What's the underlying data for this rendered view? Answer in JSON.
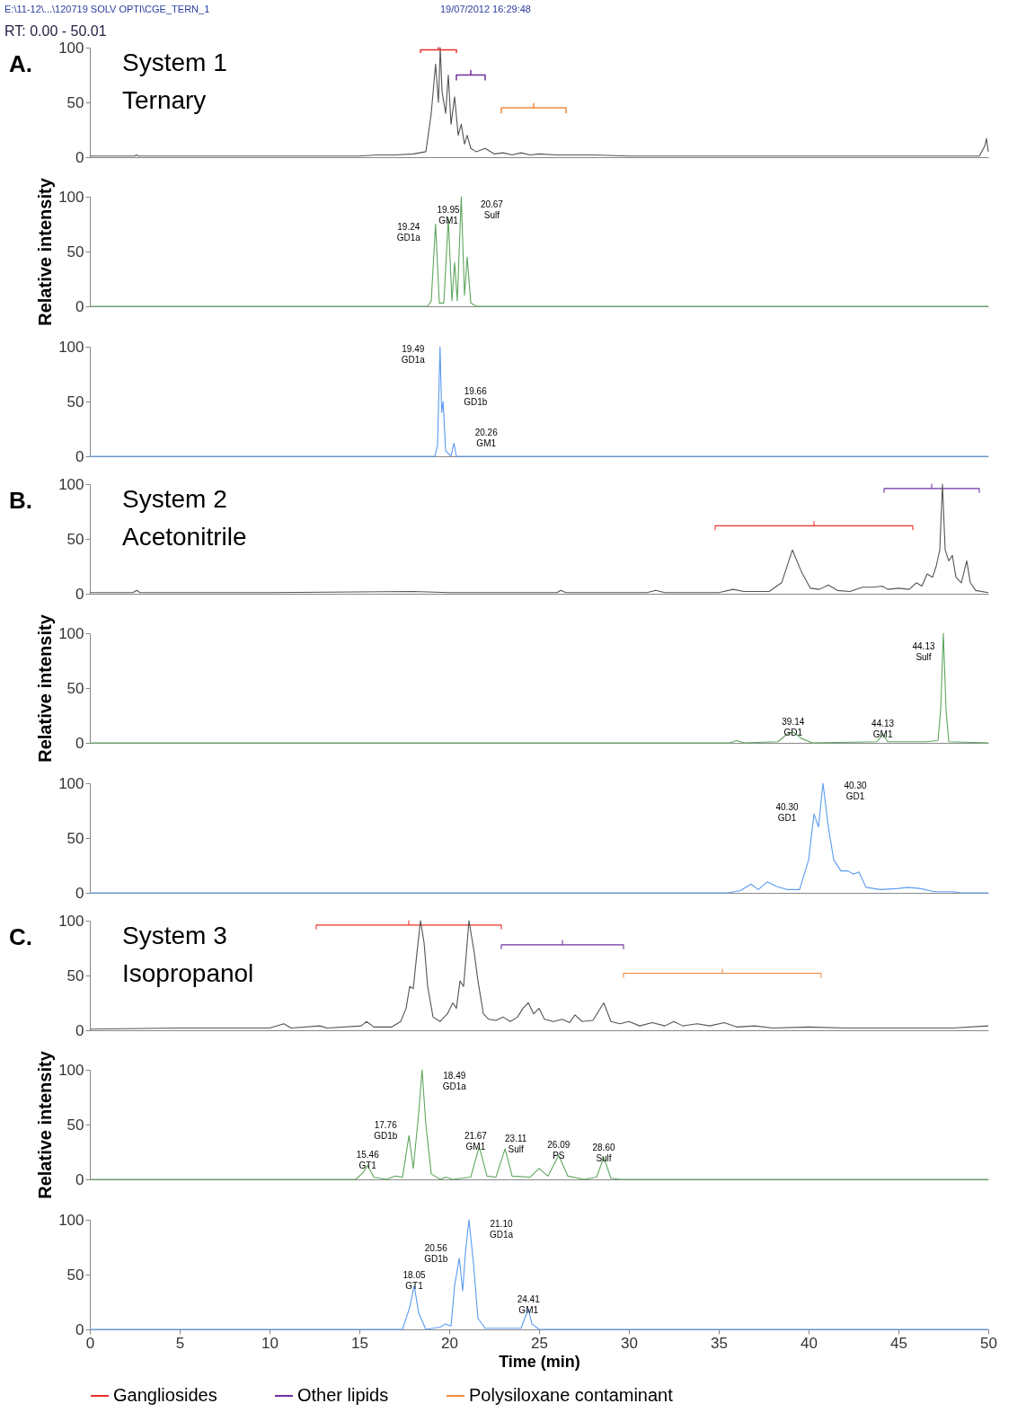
{
  "chart_data": [
    {
      "type": "line",
      "xlim": [
        0,
        50
      ],
      "ylim": [
        0,
        100
      ],
      "yticks": [
        0,
        50,
        100
      ],
      "tick_labels": "y",
      "legend": "bottom",
      "annotations": [
        "E:\\11-12\\...\\120719 SOLV OPTI\\CGE_TERN_1",
        "19/07/2012 16:29:48",
        "RT: 0.00 - 50.01",
        "A.",
        "System 1",
        "Ternary"
      ],
      "series": [
        {
          "color": "#555555",
          "x": [
            0,
            2.5,
            2.6,
            2.7,
            15,
            16,
            17,
            18,
            18.7,
            19.0,
            19.24,
            19.4,
            19.5,
            19.6,
            19.8,
            19.95,
            20.1,
            20.3,
            20.5,
            20.67,
            20.85,
            21,
            21.2,
            21.5,
            22,
            22.5,
            23,
            23.5,
            24,
            24.5,
            25,
            26,
            28,
            30,
            40,
            48,
            49.5,
            49.8,
            49.9,
            50
          ],
          "values": [
            1,
            1,
            2,
            1,
            1,
            2,
            2,
            3,
            5,
            40,
            85,
            50,
            100,
            60,
            40,
            75,
            30,
            55,
            20,
            30,
            12,
            20,
            8,
            5,
            8,
            3,
            4,
            2,
            4,
            2,
            3,
            2,
            2,
            1,
            1,
            1,
            1,
            10,
            17,
            5
          ]
        },
        {
          "type": "line",
          "name": "Gangliosides",
          "color": "#e8302a",
          "x": [
            18.4,
            18.4,
            19.4,
            19.4,
            19.4,
            20.4,
            20.4
          ],
          "values": [
            95,
            98,
            98,
            100,
            98,
            98,
            95
          ]
        },
        {
          "type": "line",
          "name": "Other lipids",
          "color": "#7030a0",
          "x": [
            20.4,
            20.4,
            21.2,
            21.2,
            21.2,
            22,
            22
          ],
          "values": [
            70,
            75,
            75,
            79,
            75,
            75,
            70
          ]
        },
        {
          "type": "line",
          "name": "Polysiloxane contaminant",
          "color": "#f08a3c",
          "x": [
            22.9,
            22.9,
            24.7,
            24.7,
            24.7,
            26.5,
            26.5
          ],
          "values": [
            40,
            45,
            45,
            49,
            45,
            45,
            40
          ]
        }
      ]
    },
    {
      "type": "line",
      "xlim": [
        0,
        50
      ],
      "ylim": [
        0,
        100
      ],
      "yticks": [
        0,
        50,
        100
      ],
      "tick_labels": "y",
      "ylabel": "Relative intensity",
      "annotations": [
        {
          "text": "19.24\nGD1a",
          "x": 19.24,
          "y": 75
        },
        {
          "text": "19.95\nGM1",
          "x": 19.95,
          "y": 80
        },
        {
          "text": "20.67\nSulf",
          "x": 20.67,
          "y": 100
        }
      ],
      "series": [
        {
          "color": "#5ea65e",
          "x": [
            0,
            18.8,
            19.0,
            19.24,
            19.45,
            19.7,
            19.95,
            20.15,
            20.3,
            20.45,
            20.67,
            20.85,
            21.0,
            21.2,
            21.5,
            50
          ],
          "values": [
            0,
            0,
            5,
            75,
            3,
            3,
            80,
            5,
            40,
            5,
            100,
            10,
            45,
            3,
            0,
            0
          ]
        }
      ]
    },
    {
      "type": "line",
      "xlim": [
        0,
        50
      ],
      "ylim": [
        0,
        100
      ],
      "yticks": [
        0,
        50,
        100
      ],
      "tick_labels": "y",
      "annotations": [
        {
          "text": "19.49\nGD1a",
          "x": 19.49,
          "y": 100
        },
        {
          "text": "19.66\nGD1b",
          "x": 19.66,
          "y": 50
        },
        {
          "text": "20.26\nGM1",
          "x": 20.26,
          "y": 12
        }
      ],
      "series": [
        {
          "color": "#5b9bf0",
          "x": [
            0,
            19.2,
            19.35,
            19.49,
            19.58,
            19.66,
            19.8,
            20.1,
            20.26,
            20.4,
            50
          ],
          "values": [
            0,
            0,
            10,
            100,
            40,
            50,
            5,
            0,
            12,
            0,
            0
          ]
        }
      ]
    },
    {
      "type": "line",
      "xlim": [
        0,
        50
      ],
      "ylim": [
        0,
        100
      ],
      "yticks": [
        0,
        50,
        100
      ],
      "tick_labels": "y",
      "annotations": [
        "B.",
        "System 2",
        "Acetonitrile"
      ],
      "series": [
        {
          "type": "line",
          "color": "#7030a0",
          "x": [
            44.2,
            44.2,
            46.85,
            46.85,
            46.85,
            49.5,
            49.5
          ],
          "values": [
            92,
            96,
            96,
            100,
            96,
            96,
            92
          ]
        },
        {
          "type": "line",
          "color": "#e8302a",
          "x": [
            34.8,
            34.8,
            40.3,
            40.3,
            40.3,
            45.8,
            45.8
          ],
          "values": [
            58,
            62,
            62,
            66,
            62,
            62,
            58
          ]
        },
        {
          "color": "#555555",
          "x": [
            0,
            2.4,
            2.6,
            2.8,
            10,
            18,
            20,
            26,
            26.2,
            26.5,
            31,
            31.5,
            32,
            35,
            35.8,
            36.4,
            37,
            37.8,
            38.5,
            39.1,
            39.6,
            40.1,
            40.6,
            41.1,
            41.6,
            42.3,
            43,
            43.6,
            44.1,
            44.4,
            45,
            45.6,
            46,
            46.3,
            46.6,
            46.9,
            47.1,
            47.3,
            47.45,
            47.6,
            47.8,
            48,
            48.2,
            48.5,
            48.8,
            49.0,
            49.3,
            50
          ],
          "values": [
            1,
            1,
            3,
            1,
            1,
            2,
            1,
            1,
            3,
            1,
            1,
            3,
            1,
            1,
            4,
            2,
            2,
            2,
            10,
            40,
            20,
            5,
            4,
            8,
            3,
            2,
            6,
            6,
            7,
            4,
            5,
            4,
            10,
            7,
            18,
            15,
            25,
            40,
            100,
            40,
            30,
            35,
            15,
            10,
            30,
            10,
            3,
            1
          ]
        }
      ]
    },
    {
      "type": "line",
      "xlim": [
        0,
        50
      ],
      "ylim": [
        0,
        100
      ],
      "yticks": [
        0,
        50,
        100
      ],
      "tick_labels": "y",
      "ylabel": "Relative intensity",
      "annotations": [
        {
          "text": "44.13\nSulf",
          "x": 47.5,
          "y": 100
        },
        {
          "text": "39.14\nGD1",
          "x": 39.14,
          "y": 10
        },
        {
          "text": "44.13\nGM1",
          "x": 44.13,
          "y": 8
        }
      ],
      "series": [
        {
          "color": "#5ea65e",
          "x": [
            0,
            35.6,
            36,
            36.4,
            38.3,
            38.8,
            39.14,
            39.6,
            40.2,
            43.8,
            44.13,
            44.4,
            46.5,
            47.2,
            47.35,
            47.5,
            47.65,
            47.8,
            50
          ],
          "values": [
            0,
            0,
            2,
            0,
            1,
            8,
            10,
            4,
            0,
            1,
            8,
            1,
            1,
            2,
            30,
            100,
            30,
            1,
            0
          ]
        }
      ]
    },
    {
      "type": "line",
      "xlim": [
        0,
        50
      ],
      "ylim": [
        0,
        100
      ],
      "yticks": [
        0,
        50,
        100
      ],
      "tick_labels": "y",
      "annotations": [
        {
          "text": "40.30\nGD1",
          "x": 40.3,
          "y": 72
        },
        {
          "text": "40.30\nGD1",
          "x": 40.8,
          "y": 100
        }
      ],
      "series": [
        {
          "color": "#5b9bf0",
          "x": [
            0,
            35.5,
            36.2,
            36.8,
            37.2,
            37.7,
            38.2,
            38.8,
            39.5,
            40.0,
            40.3,
            40.55,
            40.8,
            41.1,
            41.4,
            41.8,
            42.2,
            42.5,
            42.8,
            43.2,
            44,
            45,
            45.5,
            46.2,
            47,
            48,
            48.5,
            50
          ],
          "values": [
            0,
            0,
            2,
            8,
            3,
            10,
            6,
            3,
            3,
            30,
            72,
            60,
            100,
            60,
            30,
            20,
            20,
            17,
            19,
            5,
            3,
            4,
            5,
            4,
            1,
            1,
            0,
            0
          ]
        }
      ]
    },
    {
      "type": "line",
      "xlim": [
        0,
        50
      ],
      "ylim": [
        0,
        100
      ],
      "yticks": [
        0,
        50,
        100
      ],
      "tick_labels": "y",
      "annotations": [
        "C.",
        "System 3",
        "Isopropanol"
      ],
      "series": [
        {
          "type": "line",
          "color": "#e8302a",
          "x": [
            12.6,
            12.6,
            17.75,
            17.75,
            17.75,
            22.9,
            22.9
          ],
          "values": [
            92,
            96,
            96,
            100,
            96,
            96,
            92
          ]
        },
        {
          "type": "line",
          "color": "#7030a0",
          "x": [
            22.9,
            22.9,
            26.3,
            26.3,
            26.3,
            29.7,
            29.7
          ],
          "values": [
            74,
            78,
            78,
            82,
            78,
            78,
            74
          ]
        },
        {
          "type": "line",
          "color": "#f08a3c",
          "x": [
            29.7,
            29.7,
            35.2,
            35.2,
            35.2,
            40.7,
            40.7
          ],
          "values": [
            48,
            52,
            52,
            56,
            52,
            52,
            48
          ]
        },
        {
          "color": "#555555",
          "x": [
            0,
            5,
            10,
            10.8,
            11.2,
            12.8,
            13.2,
            15.1,
            15.4,
            15.8,
            16.8,
            17.3,
            17.6,
            17.8,
            18.0,
            18.2,
            18.4,
            18.6,
            18.8,
            19.1,
            19.5,
            19.9,
            20.2,
            20.4,
            20.6,
            20.8,
            21.1,
            21.4,
            21.6,
            21.9,
            22.2,
            22.6,
            23,
            23.4,
            23.8,
            24.1,
            24.4,
            24.7,
            25,
            25.3,
            25.8,
            26.3,
            26.7,
            27,
            27.4,
            28,
            28.6,
            29,
            29.5,
            30,
            30.6,
            31.3,
            32,
            32.5,
            33,
            33.8,
            34.5,
            35.3,
            36,
            37,
            38,
            40,
            42,
            45,
            48,
            50
          ],
          "values": [
            1,
            2,
            2,
            6,
            2,
            4,
            2,
            4,
            8,
            3,
            3,
            8,
            20,
            40,
            38,
            70,
            100,
            80,
            40,
            12,
            8,
            15,
            25,
            20,
            45,
            40,
            100,
            70,
            45,
            15,
            10,
            9,
            12,
            8,
            12,
            20,
            25,
            15,
            20,
            10,
            8,
            10,
            7,
            14,
            8,
            9,
            25,
            8,
            6,
            8,
            4,
            7,
            4,
            8,
            4,
            6,
            4,
            7,
            3,
            4,
            2,
            3,
            2,
            2,
            2,
            4
          ]
        }
      ]
    },
    {
      "type": "line",
      "xlim": [
        0,
        50
      ],
      "ylim": [
        0,
        100
      ],
      "yticks": [
        0,
        50,
        100
      ],
      "tick_labels": "y",
      "ylabel": "Relative intensity",
      "annotations": [
        {
          "text": "15.46\nGT1",
          "x": 15.46,
          "y": 13
        },
        {
          "text": "17.76\nGD1b",
          "x": 17.76,
          "y": 40
        },
        {
          "text": "18.49\nGD1a",
          "x": 18.49,
          "y": 100
        },
        {
          "text": "21.67\nGM1",
          "x": 21.67,
          "y": 30
        },
        {
          "text": "23.11\nSulf",
          "x": 23.11,
          "y": 28
        },
        {
          "text": "26.09\nPS",
          "x": 26.09,
          "y": 22
        },
        {
          "text": "28.60\nSulf",
          "x": 28.6,
          "y": 20
        }
      ],
      "series": [
        {
          "color": "#5ea65e",
          "x": [
            0,
            14.8,
            15.2,
            15.46,
            15.8,
            16.5,
            17,
            17.4,
            17.76,
            18.0,
            18.3,
            18.49,
            18.7,
            19,
            19.5,
            19.8,
            20.2,
            21.2,
            21.67,
            22.1,
            22.6,
            23.11,
            23.5,
            24.5,
            25,
            25.5,
            26.09,
            26.6,
            27.5,
            28.2,
            28.6,
            29,
            29.5,
            50
          ],
          "values": [
            0,
            0,
            6,
            13,
            2,
            0,
            3,
            2,
            40,
            10,
            60,
            100,
            50,
            5,
            0,
            2,
            0,
            2,
            30,
            3,
            2,
            28,
            3,
            2,
            10,
            3,
            22,
            3,
            0,
            2,
            20,
            1,
            0,
            0
          ]
        }
      ]
    },
    {
      "type": "line",
      "xlim": [
        0,
        50
      ],
      "ylim": [
        0,
        100
      ],
      "yticks": [
        0,
        50,
        100
      ],
      "xticks": [
        0,
        5,
        10,
        15,
        20,
        25,
        30,
        35,
        40,
        45,
        50
      ],
      "xlabel": "Time (min)",
      "annotations": [
        {
          "text": "18.05\nGT1",
          "x": 18.05,
          "y": 40
        },
        {
          "text": "20.56\nGD1b",
          "x": 20.56,
          "y": 65
        },
        {
          "text": "21.10\nGD1a",
          "x": 21.1,
          "y": 100
        },
        {
          "text": "24.41\nGM1",
          "x": 24.41,
          "y": 18
        }
      ],
      "series": [
        {
          "color": "#5b9bf0",
          "x": [
            0,
            17.4,
            17.8,
            18.05,
            18.3,
            18.7,
            19.5,
            19.8,
            20.1,
            20.3,
            20.56,
            20.75,
            20.9,
            21.1,
            21.35,
            21.6,
            22,
            24,
            24.2,
            24.41,
            24.6,
            25,
            50
          ],
          "values": [
            0,
            0,
            20,
            40,
            15,
            0,
            2,
            5,
            3,
            40,
            65,
            35,
            70,
            100,
            60,
            10,
            1,
            1,
            10,
            18,
            5,
            0,
            0
          ]
        }
      ]
    }
  ]
}
